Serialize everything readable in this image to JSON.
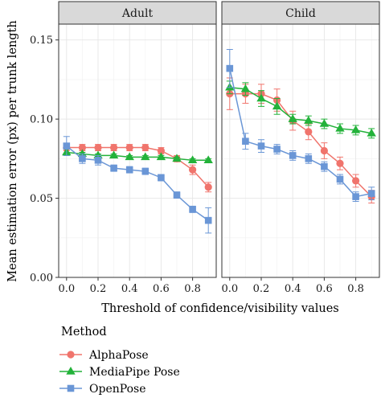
{
  "chart_data": {
    "type": "line",
    "ylabel": "Mean estimation error (px) per trunk length",
    "xlabel": "Threshold of confidence/visibility values",
    "ylim": [
      0,
      0.16
    ],
    "xlim": [
      -0.05,
      0.95
    ],
    "x_ticks": [
      "0.0",
      "0.2",
      "0.4",
      "0.6",
      "0.8"
    ],
    "y_ticks": [
      "0.00",
      "0.05",
      "0.10",
      "0.15"
    ],
    "grid": true,
    "legend": {
      "title": "Method",
      "position": "bottom-left",
      "entries": [
        "AlphaPose",
        "MediaPipe Pose",
        "OpenPose"
      ]
    },
    "colors": {
      "AlphaPose": "#f0746c",
      "MediaPipe Pose": "#23b23a",
      "OpenPose": "#6a96d6"
    },
    "markers": {
      "AlphaPose": "circle",
      "MediaPipe Pose": "triangle",
      "OpenPose": "square"
    },
    "panels": [
      {
        "title": "Adult",
        "series": [
          {
            "name": "AlphaPose",
            "x": [
              0.0,
              0.1,
              0.2,
              0.3,
              0.4,
              0.5,
              0.6,
              0.7,
              0.8,
              0.9
            ],
            "y": [
              0.082,
              0.082,
              0.082,
              0.082,
              0.082,
              0.082,
              0.08,
              0.075,
              0.068,
              0.057
            ],
            "err": [
              0.002,
              0.002,
              0.002,
              0.002,
              0.002,
              0.002,
              0.002,
              0.002,
              0.003,
              0.003
            ]
          },
          {
            "name": "MediaPipe Pose",
            "x": [
              0.0,
              0.1,
              0.2,
              0.3,
              0.4,
              0.5,
              0.6,
              0.7,
              0.8,
              0.9
            ],
            "y": [
              0.079,
              0.078,
              0.077,
              0.077,
              0.076,
              0.076,
              0.076,
              0.075,
              0.074,
              0.074
            ],
            "err": [
              0.002,
              0.001,
              0.001,
              0.001,
              0.001,
              0.001,
              0.001,
              0.001,
              0.001,
              0.001
            ]
          },
          {
            "name": "OpenPose",
            "x": [
              0.0,
              0.1,
              0.2,
              0.3,
              0.4,
              0.5,
              0.6,
              0.7,
              0.8,
              0.9
            ],
            "y": [
              0.083,
              0.075,
              0.074,
              0.069,
              0.068,
              0.067,
              0.063,
              0.052,
              0.043,
              0.036
            ],
            "err": [
              0.006,
              0.003,
              0.003,
              0.002,
              0.002,
              0.002,
              0.002,
              0.002,
              0.002,
              0.008
            ]
          }
        ]
      },
      {
        "title": "Child",
        "series": [
          {
            "name": "AlphaPose",
            "x": [
              0.0,
              0.1,
              0.2,
              0.3,
              0.4,
              0.5,
              0.6,
              0.7,
              0.8,
              0.9
            ],
            "y": [
              0.116,
              0.116,
              0.116,
              0.112,
              0.099,
              0.092,
              0.08,
              0.072,
              0.061,
              0.051
            ],
            "err": [
              0.01,
              0.006,
              0.006,
              0.007,
              0.006,
              0.005,
              0.005,
              0.004,
              0.004,
              0.004
            ]
          },
          {
            "name": "MediaPipe Pose",
            "x": [
              0.0,
              0.1,
              0.2,
              0.3,
              0.4,
              0.5,
              0.6,
              0.7,
              0.8,
              0.9
            ],
            "y": [
              0.12,
              0.119,
              0.113,
              0.108,
              0.1,
              0.099,
              0.097,
              0.094,
              0.093,
              0.091
            ],
            "err": [
              0.004,
              0.004,
              0.005,
              0.005,
              0.003,
              0.003,
              0.003,
              0.003,
              0.003,
              0.003
            ]
          },
          {
            "name": "OpenPose",
            "x": [
              0.0,
              0.1,
              0.2,
              0.3,
              0.4,
              0.5,
              0.6,
              0.7,
              0.8,
              0.9
            ],
            "y": [
              0.132,
              0.086,
              0.083,
              0.081,
              0.077,
              0.075,
              0.07,
              0.062,
              0.051,
              0.053
            ],
            "err": [
              0.012,
              0.005,
              0.004,
              0.003,
              0.003,
              0.003,
              0.003,
              0.003,
              0.003,
              0.004
            ]
          }
        ]
      }
    ]
  }
}
